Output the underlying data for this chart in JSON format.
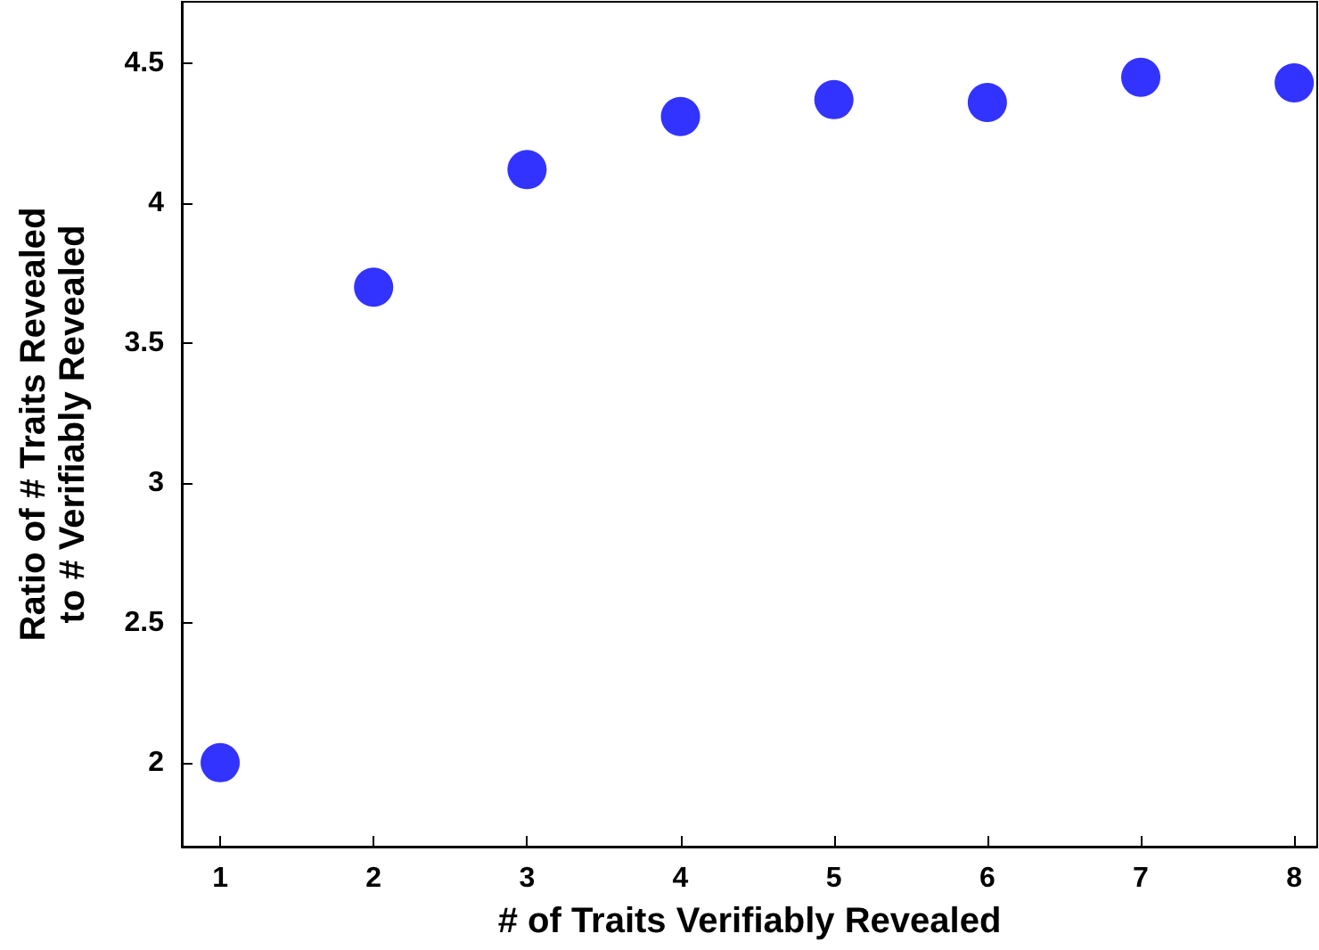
{
  "chart_data": {
    "type": "scatter",
    "xlabel": "# of Traits Verifiably Revealed",
    "ylabel": "Ratio of # Traits Revealed\nto # Verifiably Revealed",
    "x": [
      1,
      2,
      3,
      4,
      5,
      6,
      7,
      8
    ],
    "series": [
      {
        "color": "#0000ff",
        "values": [
          2.0,
          3.7,
          4.12,
          4.31,
          4.37,
          4.36,
          4.45,
          4.43
        ]
      }
    ],
    "xlim": [
      0.75,
      8.15
    ],
    "xticks": [
      1,
      2,
      3,
      4,
      5,
      6,
      7,
      8
    ],
    "ylim": [
      1.7,
      4.72
    ],
    "yticks": [
      2,
      2.5,
      3,
      3.5,
      4,
      4.5
    ],
    "grid": false,
    "marker": "circle"
  }
}
